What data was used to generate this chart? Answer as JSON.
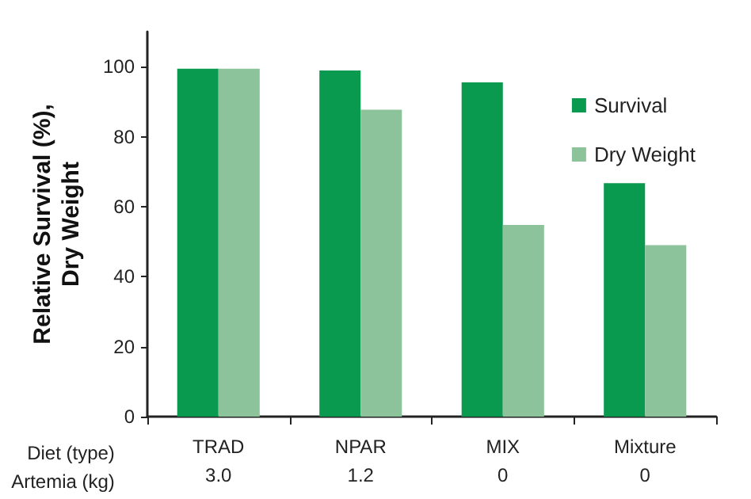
{
  "chart_data": {
    "type": "bar",
    "ylabel": "Relative Survival (%),\nDry Weight",
    "xlabel": "Diet (type)\nArtemia (kg)",
    "categories": [
      "TRAD\n3.0",
      "NPAR\n1.2",
      "MIX\n0",
      "Mixture\n0"
    ],
    "series": [
      {
        "name": "Survival",
        "color": "#0a9a4f",
        "values": [
          99.4,
          98.9,
          95.5,
          66.7
        ]
      },
      {
        "name": "Dry Weight",
        "color": "#8cc39b",
        "values": [
          99.4,
          87.7,
          54.8,
          49.0
        ]
      }
    ],
    "ylim": [
      0,
      110
    ],
    "yticks": [
      0,
      20,
      40,
      60,
      80,
      100
    ],
    "grid": false,
    "legend": "top right"
  }
}
